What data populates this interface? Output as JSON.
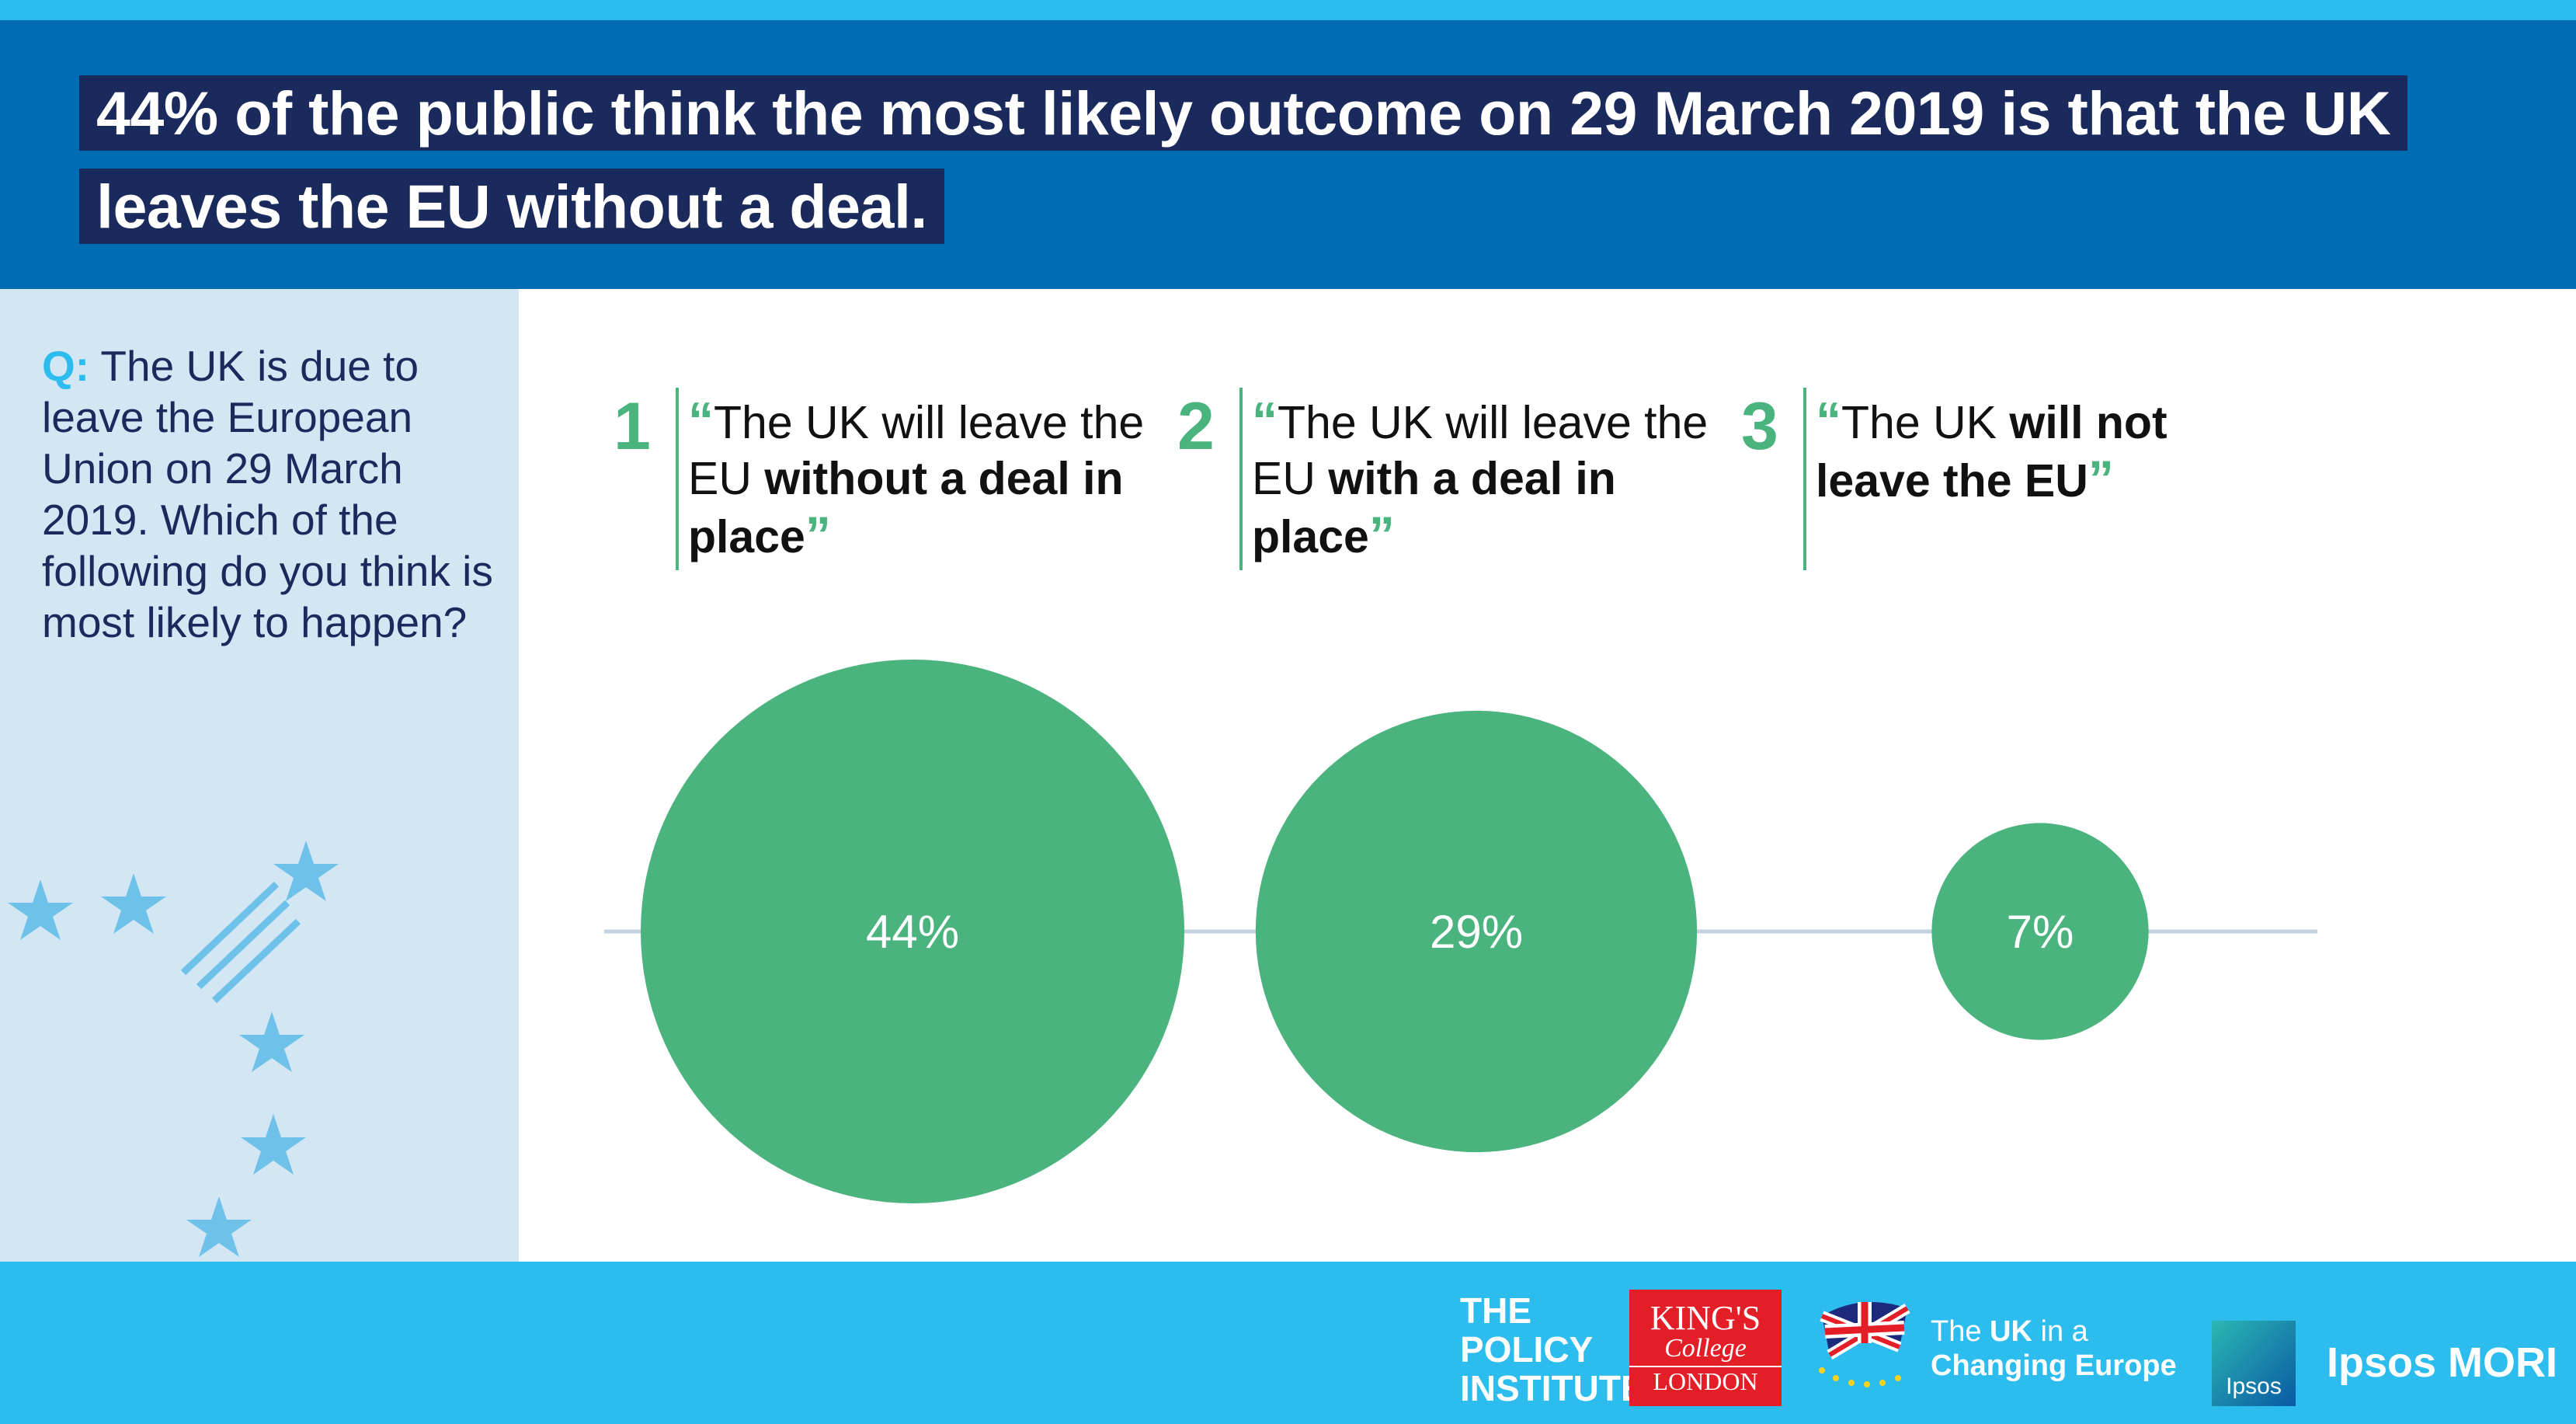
{
  "headline": "44% of the public think the most likely outcome on 29 March 2019 is that the UK leaves the EU without a deal.",
  "question": {
    "prefix": "Q:",
    "text": " The UK is due to leave the European Union on 29 March 2019. Which of the following do you think is most likely to happen?"
  },
  "options": [
    {
      "number": "1",
      "plain": "The UK will leave the EU ",
      "bold": "without a deal in place"
    },
    {
      "number": "2",
      "plain": "The UK will leave the EU ",
      "bold": "with a deal in place"
    },
    {
      "number": "3",
      "plain": "The UK ",
      "bold": "will not leave the EU"
    }
  ],
  "quote_open": "“",
  "quote_close": "”",
  "chart_data": {
    "type": "bubble",
    "categories": [
      "The UK will leave the EU without a deal in place",
      "The UK will leave the EU with a deal in place",
      "The UK will not leave the EU"
    ],
    "values": [
      44,
      29,
      7
    ],
    "value_labels": [
      "44%",
      "29%",
      "7%"
    ],
    "unit": "%"
  },
  "colors": {
    "bubble": "#4ab37e",
    "axis": "#c2d2df",
    "header": "#006cb4",
    "headline_bg": "#1b2a5c",
    "accent": "#2dbcee"
  },
  "footer": {
    "policy_institute": [
      "THE",
      "POLICY",
      "INSTITUTE"
    ],
    "kcl": {
      "line1": "KING'S",
      "line2": "College",
      "line3": "LONDON"
    },
    "ukce": {
      "line1_a": "The ",
      "line1_b": "UK",
      "line1_c": " in a",
      "line2": "Changing Europe"
    },
    "ipsos_box": "Ipsos",
    "ipsos_mori": "Ipsos MORI"
  }
}
